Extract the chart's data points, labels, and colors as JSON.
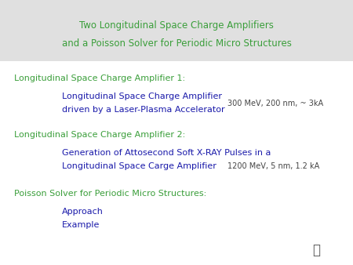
{
  "title_line1": "Two Longitudinal Space Charge Amplifiers",
  "title_line2": "and a Poisson Solver for Periodic Micro Structures",
  "title_color": "#3a9e3a",
  "title_bg_color": "#e0e0e0",
  "bg_color": "#ffffff",
  "green_color": "#3a9e3a",
  "blue_color": "#1a1aaa",
  "black_color": "#444444",
  "section1_header": "Longitudinal Space Charge Amplifier 1:",
  "section1_line1": "Longitudinal Space Charge Amplifier",
  "section1_line2": "driven by a Laser-Plasma Accelerator",
  "section1_note": "300 MeV, 200 nm, ~ 3kA",
  "section2_header": "Longitudinal Space Charge Amplifier 2:",
  "section2_line1": "Generation of Attosecond Soft X-RAY Pulses in a",
  "section2_line2": "Longitudinal Space Carge Amplifier",
  "section2_note": "1200 MeV, 5 nm, 1.2 kA",
  "section3_header": "Poisson Solver for Periodic Micro Structures:",
  "section3_line1": "Approach",
  "section3_line2": "Example",
  "title_fontsize": 8.5,
  "header_fontsize": 8.0,
  "body_fontsize": 8.0,
  "note_fontsize": 7.0
}
